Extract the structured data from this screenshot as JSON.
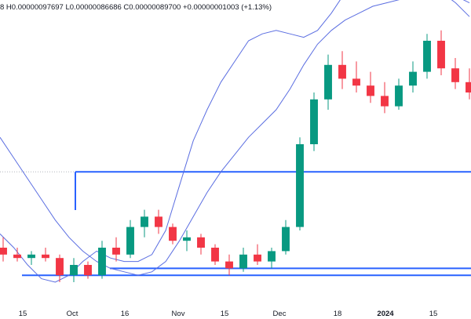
{
  "ohlc": {
    "text": "8 H0.00000097697 L0.00000086686 C0.00000089700 +0.00000001003 (+1.13%)"
  },
  "colors": {
    "up": "#089981",
    "down": "#f23645",
    "ma": "#5b6ee1",
    "level": "#2962ff",
    "dotted": "#b2b5be",
    "text": "#131722"
  },
  "chart_data": {
    "type": "candlestick",
    "x_tick_labels": [
      "15",
      "Oct",
      "16",
      "Nov",
      "15",
      "Dec",
      "18",
      "2024",
      "15"
    ],
    "bold_tick_labels": [
      "2024"
    ],
    "ma_series": [
      {
        "values": [
          4e-07,
          4e-07,
          3e-07,
          3e-07,
          3e-07,
          3e-07,
          3e-07,
          3e-07,
          3e-07,
          3e-07,
          4e-07,
          4e-07,
          4e-07,
          4e-07,
          4e-07,
          4e-07,
          5e-07,
          5e-07,
          5e-07,
          5e-07,
          6e-07,
          6e-07,
          6e-07,
          6e-07,
          7e-07,
          7e-07,
          7e-07,
          7e-07,
          7e-07,
          8e-07,
          8e-07,
          8e-07,
          8e-07,
          8e-07,
          9e-07,
          9e-07,
          9e-07,
          9e-07,
          1e-06,
          1e-06,
          1e-06,
          1e-06,
          1e-06,
          1e-06,
          1e-06,
          1e-06,
          1e-06,
          1e-06,
          1e-06,
          1e-06,
          1e-06
        ]
      }
    ],
    "ma_short": [
      5.4e-07,
      5e-07,
      4.5e-07,
      4.1e-07,
      4e-07,
      4.2e-07,
      4.6e-07,
      4.9e-07,
      4.7e-07,
      4.6e-07,
      4.6e-07,
      4.8e-07,
      5.5e-07,
      6.8e-07,
      8.1e-07,
      9e-07,
      9.8e-07,
      1.04e-06,
      1.1e-06,
      1.12e-06,
      1.13e-06,
      1.12e-06,
      1.11e-06,
      1.13e-06,
      1.18e-06,
      1.24e-06,
      1.28e-06,
      1.29e-06,
      1.29e-06,
      1.28e-06,
      1.27e-06,
      1.26e-06,
      1.24e-06,
      1.21e-06,
      1.17e-06
    ],
    "ma_long": [
      8.2e-07,
      7.6e-07,
      7e-07,
      6.4e-07,
      5.8e-07,
      5.3e-07,
      4.9e-07,
      4.6e-07,
      4.4e-07,
      4.3e-07,
      4.2e-07,
      4.3e-07,
      4.6e-07,
      5.2e-07,
      5.9e-07,
      6.6e-07,
      7.2e-07,
      7.7e-07,
      8.2e-07,
      8.6e-07,
      9e-07,
      9.6e-07,
      1.03e-06,
      1.09e-06,
      1.13e-06,
      1.16e-06,
      1.18e-06,
      1.2e-06,
      1.21e-06,
      1.22e-06,
      1.23e-06,
      1.24e-06,
      1.24e-06,
      1.23e-06,
      1.21e-06
    ],
    "levels": [
      7.2e-07,
      4.4e-07,
      4.2e-07,
      4.5e-07
    ],
    "candles": [
      [
        5e-07,
        5.3e-07,
        4.6e-07,
        4.8e-07
      ],
      [
        4.8e-07,
        5e-07,
        4.6e-07,
        4.7e-07
      ],
      [
        4.7e-07,
        4.9e-07,
        4.5e-07,
        4.8e-07
      ],
      [
        4.8e-07,
        5e-07,
        4.6e-07,
        4.7e-07
      ],
      [
        4.7e-07,
        4.8e-07,
        4e-07,
        4.2e-07
      ],
      [
        4.2e-07,
        4.7e-07,
        4e-07,
        4.5e-07
      ],
      [
        4.5e-07,
        4.6e-07,
        4.1e-07,
        4.2e-07
      ],
      [
        4.2e-07,
        5.2e-07,
        4.1e-07,
        5e-07
      ],
      [
        5e-07,
        5.3e-07,
        4.6e-07,
        4.8e-07
      ],
      [
        4.8e-07,
        5.8e-07,
        4.7e-07,
        5.6e-07
      ],
      [
        5.6e-07,
        6.1e-07,
        5.3e-07,
        5.9e-07
      ],
      [
        5.9e-07,
        6.1e-07,
        5.4e-07,
        5.6e-07
      ],
      [
        5.6e-07,
        5.7e-07,
        5.1e-07,
        5.2e-07
      ],
      [
        5.2e-07,
        5.5e-07,
        4.9e-07,
        5.3e-07
      ],
      [
        5.3e-07,
        5.4e-07,
        4.8e-07,
        5e-07
      ],
      [
        5e-07,
        5.1e-07,
        4.5e-07,
        4.6e-07
      ],
      [
        4.6e-07,
        4.8e-07,
        4.2e-07,
        4.4e-07
      ],
      [
        4.4e-07,
        5e-07,
        4.3e-07,
        4.8e-07
      ],
      [
        4.8e-07,
        5.1e-07,
        4.5e-07,
        4.6e-07
      ],
      [
        4.6e-07,
        5e-07,
        4.4e-07,
        4.9e-07
      ],
      [
        4.9e-07,
        5.8e-07,
        4.8e-07,
        5.6e-07
      ],
      [
        5.6e-07,
        8.2e-07,
        5.5e-07,
        8e-07
      ],
      [
        8e-07,
        9.5e-07,
        7.8e-07,
        9.3e-07
      ],
      [
        9.3e-07,
        1.06e-06,
        9e-07,
        1.03e-06
      ],
      [
        1.03e-06,
        1.07e-06,
        9.6e-07,
        9.9e-07
      ],
      [
        9.9e-07,
        1.04e-06,
        9.5e-07,
        9.7e-07
      ],
      [
        9.7e-07,
        1.01e-06,
        9.2e-07,
        9.4e-07
      ],
      [
        9.4e-07,
        9.8e-07,
        8.9e-07,
        9.1e-07
      ],
      [
        9.1e-07,
        9.9e-07,
        9e-07,
        9.7e-07
      ],
      [
        9.7e-07,
        1.04e-06,
        9.5e-07,
        1.01e-06
      ],
      [
        1.01e-06,
        1.12e-06,
        9.9e-07,
        1.1e-06
      ],
      [
        1.1e-06,
        1.13e-06,
        1e-06,
        1.02e-06
      ],
      [
        1.02e-06,
        1.05e-06,
        9.6e-07,
        9.8e-07
      ],
      [
        9.8e-07,
        1.02e-06,
        9.3e-07,
        9.5e-07
      ]
    ]
  }
}
